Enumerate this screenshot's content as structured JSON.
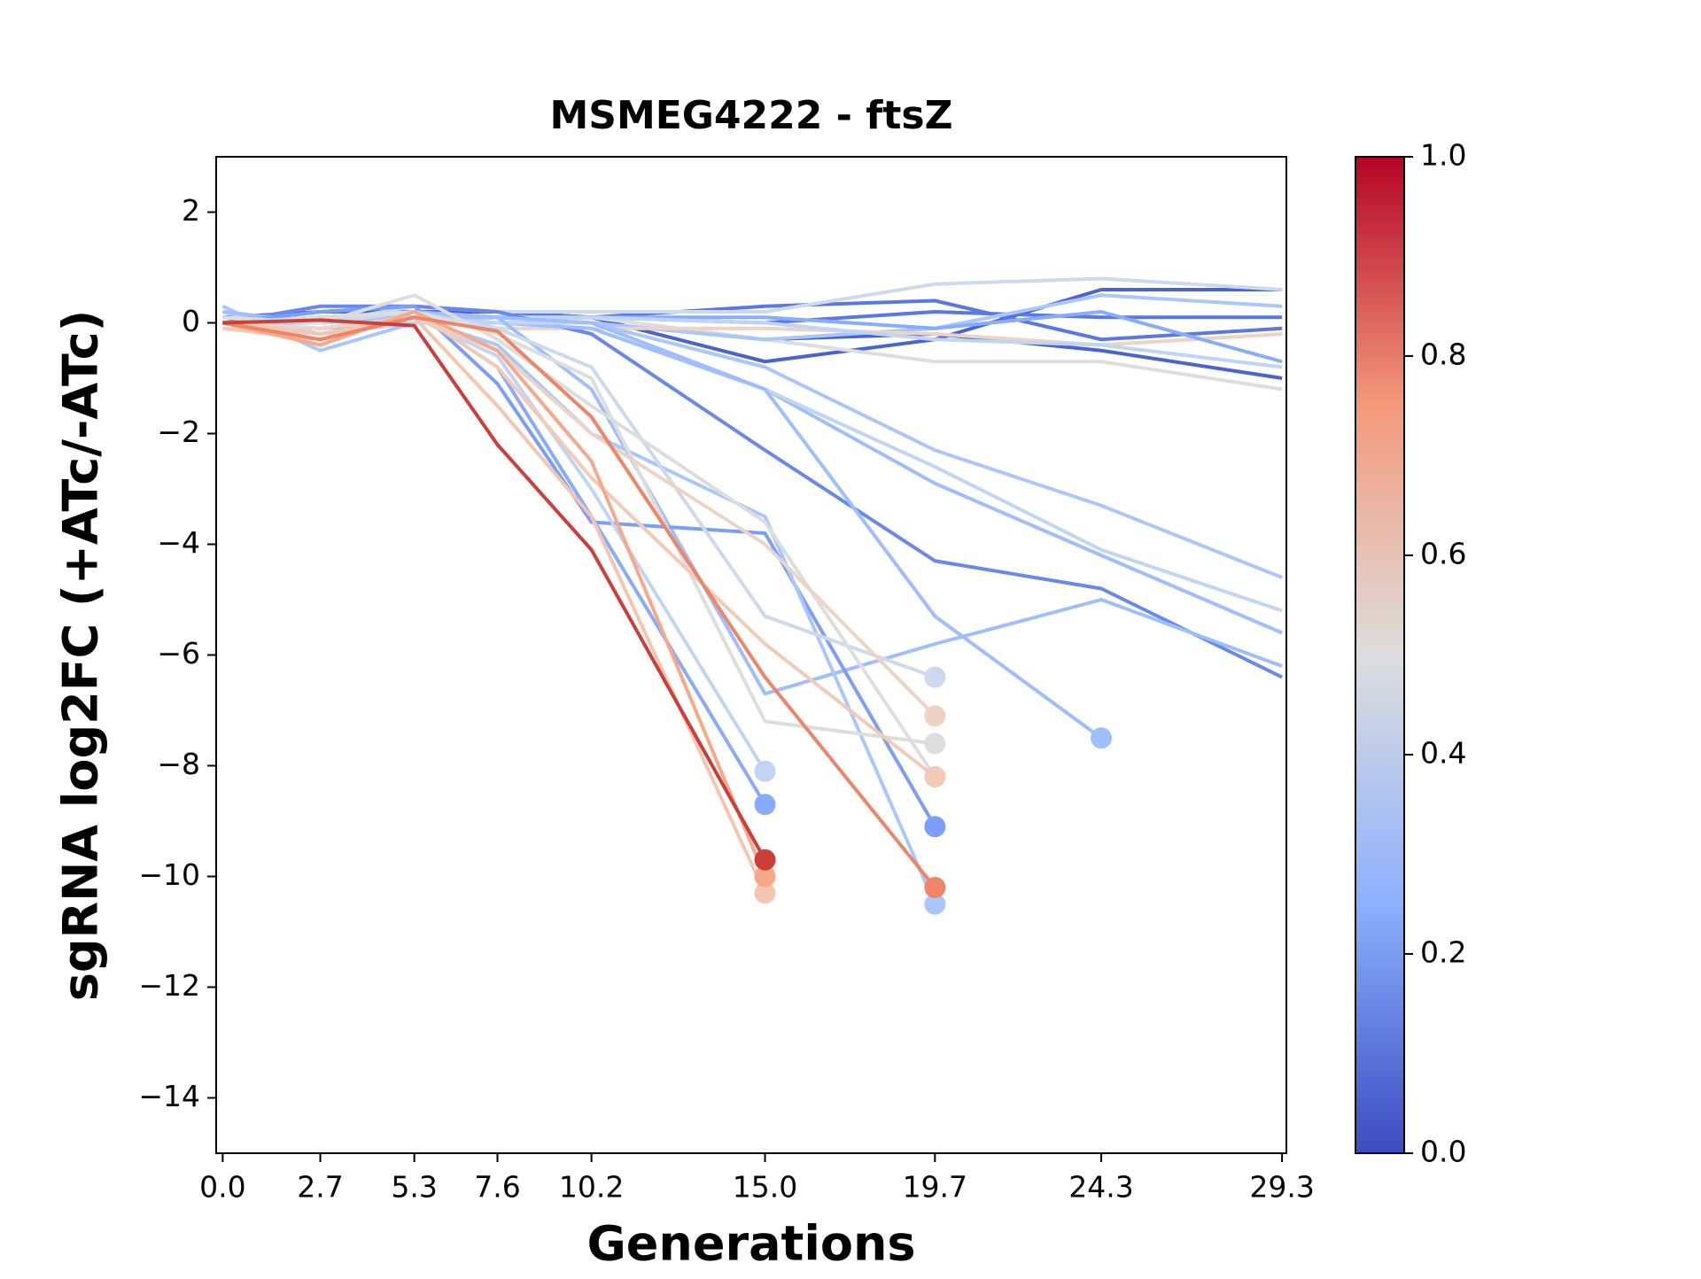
{
  "chart_data": {
    "type": "line",
    "title": "MSMEG4222 - ftsZ",
    "xlabel": "Generations",
    "ylabel": "sgRNA log2FC (+ATc/-ATc)",
    "x": [
      0,
      2.7,
      5.3,
      7.6,
      10.2,
      15,
      19.7,
      24.3,
      29.3
    ],
    "xlim": [
      -0.18,
      29.42
    ],
    "xticks": [
      {
        "value": 0,
        "label": "0.0"
      },
      2.7,
      5.3,
      7.6,
      10.2,
      {
        "value": 15,
        "label": "15.0"
      },
      19.7,
      24.3,
      29.3
    ],
    "ylim": [
      -15,
      3
    ],
    "yticks": [
      {
        "value": -14,
        "label": "−14"
      },
      {
        "value": -12,
        "label": "−12"
      },
      {
        "value": -10,
        "label": "−10"
      },
      {
        "value": -8,
        "label": "−8"
      },
      {
        "value": -6,
        "label": "−6"
      },
      {
        "value": -4,
        "label": "−4"
      },
      {
        "value": -2,
        "label": "−2"
      },
      0,
      2
    ],
    "colorbar": {
      "lim": [
        0,
        1
      ],
      "ticks": [
        {
          "value": 0,
          "label": "0.0"
        },
        0.2,
        0.4,
        0.6,
        0.8,
        {
          "value": 1,
          "label": "1.0"
        }
      ],
      "colors": [
        "#3b4cc0",
        "#8db0fe",
        "#dddddd",
        "#f49a7b",
        "#b40426"
      ]
    },
    "series": [
      {
        "color": "#4a63d3",
        "values": [
          0,
          0.1,
          0.2,
          0.2,
          0.1,
          -0.7,
          -0.3,
          0.6,
          0.6
        ]
      },
      {
        "color": "#4a63d3",
        "values": [
          0.1,
          0.2,
          0.2,
          0.1,
          0,
          -0.3,
          -0.2,
          -0.5,
          -1.0
        ]
      },
      {
        "color": "#5a78e4",
        "values": [
          0,
          0.2,
          0.3,
          0.2,
          0.1,
          0.3,
          0.4,
          -0.3,
          -0.1
        ]
      },
      {
        "color": "#5a78e4",
        "values": [
          0,
          0.1,
          0.1,
          0.1,
          0.1,
          0,
          0.2,
          0.1,
          0.1
        ]
      },
      {
        "color": "#cdd9ec",
        "values": [
          0,
          0,
          0.3,
          0.2,
          0.2,
          0.2,
          0.7,
          0.8,
          0.6
        ]
      },
      {
        "color": "#dcdddd",
        "values": [
          -0.1,
          -0.2,
          0,
          0,
          0.1,
          -0.3,
          -0.7,
          -0.7,
          -1.2
        ]
      },
      {
        "color": "#aac7fd",
        "values": [
          0.3,
          -0.5,
          0,
          0,
          0,
          -0.3,
          -0.1,
          0.5,
          0.3
        ]
      },
      {
        "color": "#ecd3c5",
        "values": [
          -0.1,
          -0.3,
          0.1,
          -0.1,
          -0.1,
          -0.1,
          -0.2,
          -0.4,
          -0.2
        ]
      },
      {
        "color": "#88abfd",
        "values": [
          0,
          -0.1,
          0,
          0.1,
          0.1,
          0.1,
          -0.1,
          0.2,
          -0.7
        ]
      },
      {
        "color": "#c0d4f5",
        "values": [
          0.2,
          -0.2,
          0,
          0.1,
          0.1,
          0,
          -0.3,
          -0.4,
          -0.8
        ]
      },
      {
        "color": "#6788ee",
        "values": [
          0,
          0.3,
          0.3,
          0.2,
          -0.2,
          -2.3,
          -4.3,
          -4.8,
          -6.4
        ]
      },
      {
        "color": "#9ebeff",
        "values": [
          0.1,
          0,
          0.1,
          0,
          -0.1,
          -1.2,
          -2.9,
          -4.2,
          -5.6
        ]
      },
      {
        "color": "#aac7fd",
        "values": [
          0,
          0,
          0.1,
          0,
          0,
          -0.8,
          -2.3,
          -3.3,
          -4.6
        ]
      },
      {
        "color": "#c0d4f5",
        "values": [
          0,
          0,
          0.1,
          0,
          0,
          -1.2,
          -2.6,
          -4.1,
          -5.2
        ]
      },
      {
        "color": "#9ebeff",
        "values": [
          0.2,
          0,
          0.1,
          0.1,
          -1.2,
          -6.7,
          -5.8,
          -5.0,
          -6.2
        ]
      },
      {
        "color": "#9ebeff",
        "values": [
          0,
          0,
          0.2,
          0.1,
          0,
          -1.2,
          -5.3,
          -7.5,
          null
        ]
      },
      {
        "color": "#7b9ff9",
        "values": [
          0,
          0.2,
          0.3,
          -1.1,
          -3.6,
          -3.8,
          -9.1,
          null,
          null
        ]
      },
      {
        "color": "#88abfd",
        "values": [
          0,
          0.1,
          0.2,
          -0.8,
          -3.5,
          -8.7,
          null,
          null,
          null
        ]
      },
      {
        "color": "#aac7fd",
        "values": [
          0,
          0,
          0.1,
          -0.4,
          -2,
          -3.5,
          -10.5,
          null,
          null
        ]
      },
      {
        "color": "#c0d4f5",
        "values": [
          0,
          -0.1,
          0.1,
          -0.6,
          -3,
          -8.1,
          null,
          null,
          null
        ]
      },
      {
        "color": "#cdd9ec",
        "values": [
          0.1,
          0,
          0.2,
          -0.1,
          -0.8,
          -5.3,
          -6.4,
          null,
          null
        ]
      },
      {
        "color": "#dcdddd",
        "values": [
          0,
          0.1,
          0.2,
          -0.2,
          -1.0,
          -7.2,
          -7.6,
          null,
          null
        ]
      },
      {
        "color": "#dcdddd",
        "values": [
          0.1,
          0,
          0.5,
          -0.3,
          -1.5,
          -3.6,
          -8.2,
          null,
          null
        ]
      },
      {
        "color": "#ecd3c5",
        "values": [
          0,
          -0.1,
          0.1,
          -0.5,
          -2,
          -4,
          -7.1,
          null,
          null
        ]
      },
      {
        "color": "#f2cbb7",
        "values": [
          -0.1,
          -0.3,
          0.2,
          -0.8,
          -2.8,
          -5.8,
          -8.2,
          null,
          null
        ]
      },
      {
        "color": "#f4c6af",
        "values": [
          0,
          -0.2,
          0.1,
          -1.5,
          -3.5,
          -10.3,
          null,
          null,
          null
        ]
      },
      {
        "color": "#f7a889",
        "values": [
          0,
          -0.4,
          0.2,
          -0.5,
          -2.5,
          -10.0,
          null,
          null,
          null
        ]
      },
      {
        "color": "#ee8468",
        "values": [
          0,
          -0.3,
          0.1,
          -0.15,
          -1.7,
          -6.4,
          -10.2,
          null,
          null
        ]
      },
      {
        "color": "#cc3f39",
        "values": [
          0,
          0.05,
          -0.05,
          -2.2,
          -4.1,
          -9.7,
          null,
          null,
          null
        ]
      }
    ]
  }
}
